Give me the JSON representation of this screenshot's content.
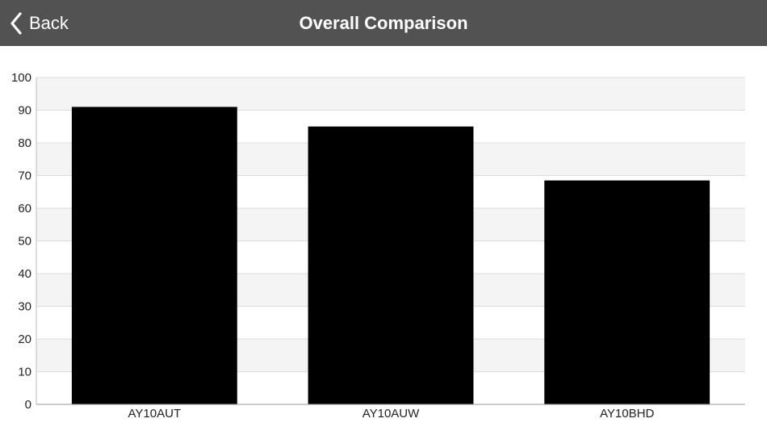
{
  "header": {
    "back_label": "Back",
    "title": "Overall Comparison"
  },
  "icons": {
    "back": "chevron-left-icon"
  },
  "colors": {
    "nav_background": "#525252",
    "bar": "#000000",
    "band": "#f4f4f4",
    "grid": "#dcdcdc"
  },
  "chart_data": {
    "type": "bar",
    "title": "",
    "xlabel": "",
    "ylabel": "",
    "categories": [
      "AY10AUT",
      "AY10AUW",
      "AY10BHD"
    ],
    "values": [
      91,
      85,
      68.5
    ],
    "ylim": [
      0,
      100
    ],
    "yticks": [
      0,
      10,
      20,
      30,
      40,
      50,
      60,
      70,
      80,
      90,
      100
    ],
    "grid": true,
    "legend": "none"
  }
}
